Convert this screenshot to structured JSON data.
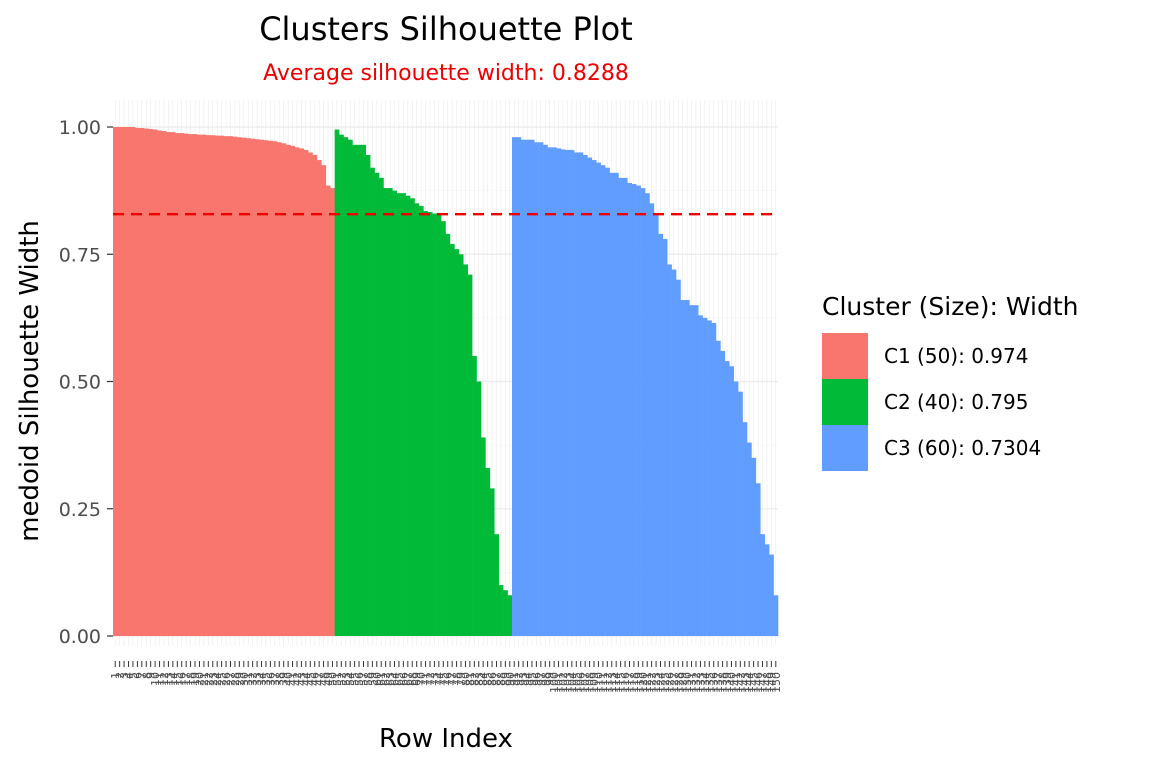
{
  "chart_data": {
    "type": "bar",
    "title": "Clusters Silhouette Plot",
    "subtitle": "Average silhouette width: 0.8288",
    "xlabel": "Row Index",
    "ylabel": "medoid Silhouette Width",
    "ylim": [
      0,
      1.0
    ],
    "yticks": [
      "0.00",
      "0.25",
      "0.50",
      "0.75",
      "1.00"
    ],
    "average_line": 0.8288,
    "average_color": "#ee0000",
    "grid": true,
    "legend_position": "right",
    "legend_title": "Cluster (Size): Width",
    "series": [
      {
        "name": "C1 (50): 0.974",
        "color": "#f8766d",
        "values": [
          1.0,
          1.0,
          1.0,
          1.0,
          1.0,
          0.998,
          0.998,
          0.997,
          0.996,
          0.995,
          0.993,
          0.992,
          0.99,
          0.99,
          0.988,
          0.988,
          0.987,
          0.986,
          0.986,
          0.985,
          0.985,
          0.984,
          0.984,
          0.983,
          0.983,
          0.982,
          0.982,
          0.981,
          0.98,
          0.979,
          0.978,
          0.977,
          0.976,
          0.975,
          0.974,
          0.973,
          0.972,
          0.97,
          0.968,
          0.965,
          0.963,
          0.96,
          0.958,
          0.955,
          0.95,
          0.945,
          0.935,
          0.925,
          0.885,
          0.88
        ]
      },
      {
        "name": "C2 (40): 0.795",
        "color": "#00ba38",
        "values": [
          0.995,
          0.985,
          0.98,
          0.975,
          0.965,
          0.965,
          0.965,
          0.945,
          0.92,
          0.91,
          0.9,
          0.88,
          0.88,
          0.875,
          0.87,
          0.87,
          0.865,
          0.86,
          0.85,
          0.845,
          0.835,
          0.833,
          0.83,
          0.83,
          0.815,
          0.79,
          0.77,
          0.76,
          0.75,
          0.73,
          0.71,
          0.55,
          0.5,
          0.39,
          0.33,
          0.29,
          0.2,
          0.1,
          0.09,
          0.08
        ]
      },
      {
        "name": "C3 (60): 0.7304",
        "color": "#619cff",
        "values": [
          0.98,
          0.98,
          0.975,
          0.975,
          0.975,
          0.97,
          0.97,
          0.965,
          0.96,
          0.96,
          0.958,
          0.956,
          0.955,
          0.955,
          0.95,
          0.95,
          0.945,
          0.94,
          0.935,
          0.93,
          0.925,
          0.92,
          0.91,
          0.91,
          0.9,
          0.9,
          0.89,
          0.888,
          0.885,
          0.88,
          0.87,
          0.85,
          0.83,
          0.79,
          0.78,
          0.73,
          0.72,
          0.7,
          0.66,
          0.66,
          0.65,
          0.65,
          0.63,
          0.625,
          0.62,
          0.615,
          0.58,
          0.56,
          0.54,
          0.53,
          0.5,
          0.48,
          0.42,
          0.38,
          0.35,
          0.3,
          0.2,
          0.18,
          0.16,
          0.08
        ]
      }
    ]
  }
}
